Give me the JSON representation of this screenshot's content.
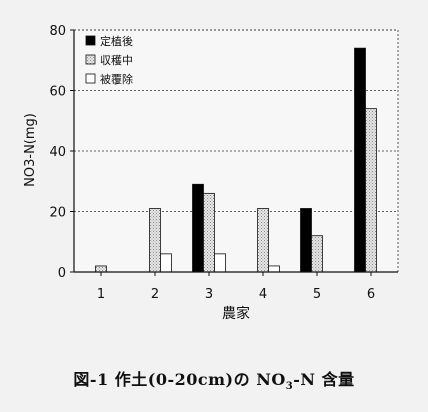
{
  "chart_data": {
    "type": "bar",
    "title": "",
    "ylabel": "NO3-N(mg)",
    "xlabel": "農家",
    "categories": [
      "1",
      "2",
      "3",
      "4",
      "5",
      "6"
    ],
    "ylim": [
      0,
      80
    ],
    "yticks": [
      0,
      20,
      40,
      60,
      80
    ],
    "grid": true,
    "legend_position": "top-left",
    "series": [
      {
        "name": "定植後",
        "fill": "#000000",
        "pattern": "solid",
        "values": [
          0,
          0,
          29,
          0,
          21,
          74
        ]
      },
      {
        "name": "収穫中",
        "fill": "#d9d9d9",
        "pattern": "dotted",
        "values": [
          2,
          21,
          26,
          21,
          12,
          54
        ]
      },
      {
        "name": "被覆除",
        "fill": "#ffffff",
        "pattern": "hollow",
        "values": [
          0,
          6,
          6,
          2,
          0,
          0
        ]
      }
    ]
  },
  "caption": {
    "prefix": "図-1 作土(0-20cm)の NO",
    "subscript": "3",
    "suffix": "-N 含量"
  }
}
